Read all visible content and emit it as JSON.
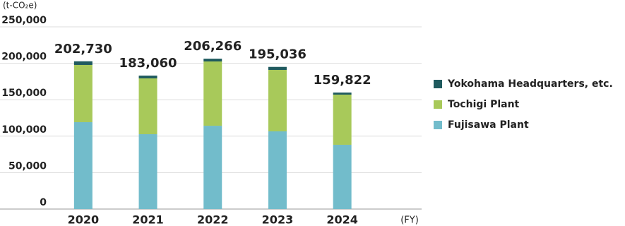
{
  "chart_data": {
    "type": "stacked_bar",
    "y_unit_label": "(t-CO₂e)",
    "x_unit_label": "(FY)",
    "categories": [
      "2020",
      "2021",
      "2022",
      "2023",
      "2024"
    ],
    "series": [
      {
        "name": "Fujisawa Plant",
        "color": "#72bccb",
        "values": [
          119200,
          102700,
          114300,
          106600,
          88200
        ]
      },
      {
        "name": "Tochigi Plant",
        "color": "#a8c95a",
        "values": [
          78500,
          76600,
          88200,
          84300,
          68800
        ]
      },
      {
        "name": "Yokohama Headquarters, etc.",
        "color": "#1f5a5e",
        "values": [
          5030,
          3760,
          3766,
          4136,
          2822
        ]
      }
    ],
    "totals": [
      202730,
      183060,
      206266,
      195036,
      159822
    ],
    "total_labels": [
      "202,730",
      "183,060",
      "206,266",
      "195,036",
      "159,822"
    ],
    "ylim": [
      0,
      250000
    ],
    "yticks": [
      0,
      {
        "value": 50000,
        "label": "50,000"
      },
      {
        "value": 100000,
        "label": "100,000"
      },
      {
        "value": 150000,
        "label": "150,000"
      },
      {
        "value": 200000,
        "label": "200,000"
      },
      {
        "value": 250000,
        "label": "250,000"
      }
    ],
    "grid": true,
    "legend": "right"
  }
}
